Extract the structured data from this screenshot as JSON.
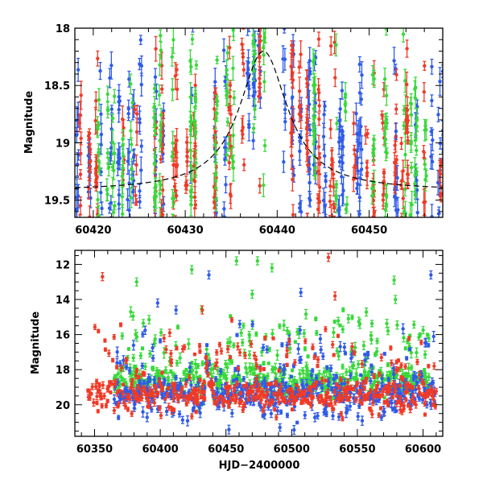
{
  "chart_data": [
    {
      "type": "scatter",
      "xlabel": "",
      "ylabel": "Magnitude",
      "xlim": [
        60418,
        60458
      ],
      "ylim": [
        19.65,
        18.0
      ],
      "y_inverted": true,
      "x_ticks": [
        "60420",
        "60430",
        "60440",
        "60450"
      ],
      "x_tick_values": [
        60420,
        60430,
        60440,
        60450
      ],
      "y_ticks": [
        "18",
        "18.5",
        "19",
        "19.5"
      ],
      "y_tick_values": [
        18,
        18.5,
        19,
        19.5
      ],
      "model_curve": {
        "style": "dashed",
        "color": "#000000",
        "peak_x": 60438.5,
        "peak_mag": 18.2,
        "baseline_mag": 19.42,
        "width_days": 3.2
      },
      "series": [
        {
          "color": "#2f5bea",
          "x_range": [
            60418,
            60458
          ],
          "mag_range": [
            18.0,
            19.65
          ],
          "error_typical": 0.12
        },
        {
          "color": "#f03a27",
          "x_range": [
            60418,
            60458
          ],
          "mag_range": [
            18.0,
            19.65
          ],
          "error_typical": 0.15
        },
        {
          "color": "#38d93a",
          "x_range": [
            60418,
            60458
          ],
          "mag_range": [
            18.0,
            19.65
          ],
          "error_typical": 0.14
        }
      ]
    },
    {
      "type": "scatter",
      "xlabel": "HJD−2400000",
      "ylabel": "Magnitude",
      "xlim": [
        60335,
        60615
      ],
      "ylim": [
        21.8,
        11.2
      ],
      "y_inverted": true,
      "x_ticks": [
        "60350",
        "60400",
        "60450",
        "60500",
        "60550",
        "60600"
      ],
      "x_tick_values": [
        60350,
        60400,
        60450,
        60500,
        60550,
        60600
      ],
      "y_ticks": [
        "12",
        "14",
        "16",
        "18",
        "20"
      ],
      "y_tick_values": [
        12,
        14,
        16,
        18,
        20
      ],
      "series": [
        {
          "color": "#2f5bea",
          "x_range": [
            60365,
            60610
          ],
          "baseline_mag": 19.3
        },
        {
          "color": "#f03a27",
          "x_range": [
            60345,
            60610
          ],
          "baseline_mag": 19.5
        },
        {
          "color": "#38d93a",
          "x_range": [
            60365,
            60605
          ],
          "baseline_mag": 18.6
        }
      ],
      "outliers": [
        {
          "x": 60356,
          "mag": 12.7,
          "color": "#f03a27"
        },
        {
          "x": 60382,
          "mag": 13.0,
          "color": "#38d93a"
        },
        {
          "x": 60398,
          "mag": 14.2,
          "color": "#2f5bea"
        },
        {
          "x": 60412,
          "mag": 14.6,
          "color": "#2f5bea"
        },
        {
          "x": 60424,
          "mag": 12.3,
          "color": "#38d93a"
        },
        {
          "x": 60432,
          "mag": 14.6,
          "color": "#f03a27"
        },
        {
          "x": 60437,
          "mag": 12.6,
          "color": "#2f5bea"
        },
        {
          "x": 60458,
          "mag": 11.8,
          "color": "#38d93a"
        },
        {
          "x": 60470,
          "mag": 13.7,
          "color": "#38d93a"
        },
        {
          "x": 60474,
          "mag": 11.8,
          "color": "#38d93a"
        },
        {
          "x": 60485,
          "mag": 12.2,
          "color": "#38d93a"
        },
        {
          "x": 60507,
          "mag": 13.6,
          "color": "#2f5bea"
        },
        {
          "x": 60528,
          "mag": 11.6,
          "color": "#f03a27"
        },
        {
          "x": 60533,
          "mag": 13.8,
          "color": "#f03a27"
        },
        {
          "x": 60578,
          "mag": 12.9,
          "color": "#38d93a"
        },
        {
          "x": 60579,
          "mag": 14.0,
          "color": "#38d93a"
        },
        {
          "x": 60606,
          "mag": 12.6,
          "color": "#2f5bea"
        }
      ]
    }
  ]
}
